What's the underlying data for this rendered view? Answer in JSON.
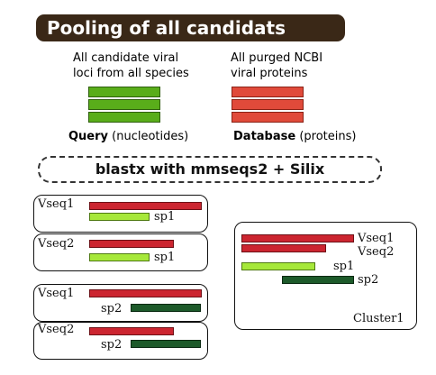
{
  "title": "Pooling of all candidats",
  "query": {
    "caption_line1": "All candidate viral",
    "caption_line2": "loci from all species",
    "label_bold": "Query",
    "label_rest": "(nucleotides)"
  },
  "database": {
    "caption_line1": "All purged NCBI",
    "caption_line2": "viral proteins",
    "label_bold": "Database",
    "label_rest": "(proteins)"
  },
  "process": "blastx with mmseqs2 + Silix",
  "hits": [
    {
      "vseq": "Vseq1",
      "sp": "sp1"
    },
    {
      "vseq": "Vseq2",
      "sp": "sp1"
    },
    {
      "vseq": "Vseq1",
      "sp": "sp2"
    },
    {
      "vseq": "Vseq2",
      "sp": "sp2"
    }
  ],
  "cluster": {
    "vseq1": "Vseq1",
    "vseq2": "Vseq2",
    "sp1": "sp1",
    "sp2": "sp2",
    "name": "Cluster1"
  },
  "colors": {
    "banner": "#3a2817",
    "query_green": "#59ad1a",
    "database_red": "#e04a3a",
    "vseq_red": "#cc2530",
    "sp1_lime": "#a6e83a",
    "sp2_darkgreen": "#1d5a2a"
  }
}
